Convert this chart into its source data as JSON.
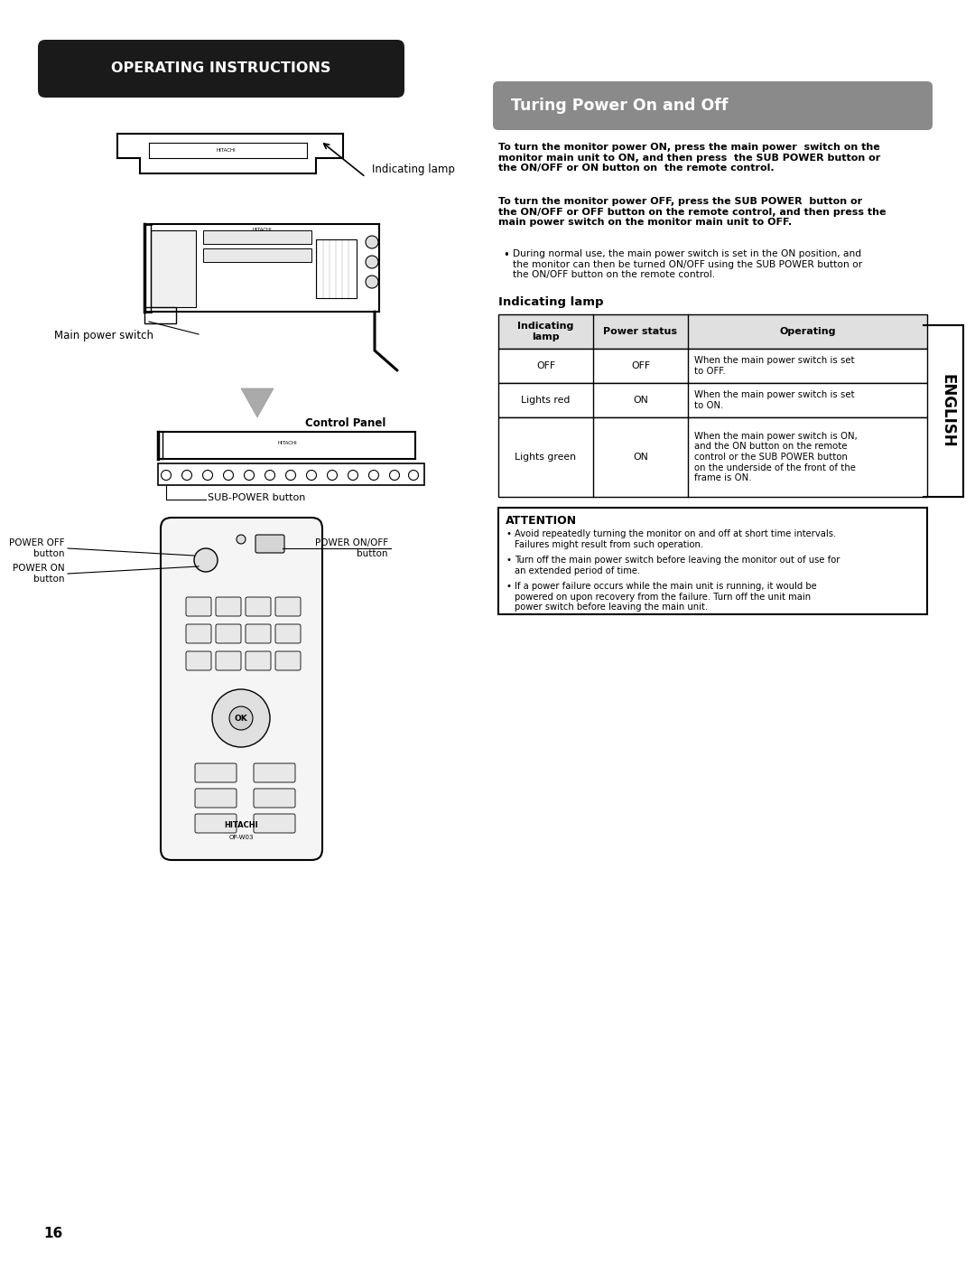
{
  "page_bg": "#ffffff",
  "header_bg": "#1a1a1a",
  "header_text": "OPERATING INSTRUCTIONS",
  "header_text_color": "#ffffff",
  "section_title": "Turing Power On and Off",
  "section_title_bg": "#8a8a8a",
  "section_title_color": "#ffffff",
  "body_bold_text1": "To turn the monitor power ON, press the main power  switch on the\nmonitor main unit to ON, and then press  the SUB POWER button or\nthe ON/OFF or ON button on  the remote control.",
  "body_bold_text2": "To turn the monitor power OFF, press the SUB POWER  button or\nthe ON/OFF or OFF button on the remote control, and then press the\nmain power switch on the monitor main unit to OFF.",
  "body_bullet": "During normal use, the main power switch is set in the ON position, and\nthe monitor can then be turned ON/OFF using the SUB POWER button or\nthe ON/OFF button on the remote control.",
  "indicating_lamp_title": "Indicating lamp",
  "table_headers": [
    "Indicating\nlamp",
    "Power status",
    "Operating"
  ],
  "table_rows": [
    [
      "OFF",
      "OFF",
      "When the main power switch is set\nto OFF."
    ],
    [
      "Lights red",
      "ON",
      "When the main power switch is set\nto ON."
    ],
    [
      "Lights green",
      "ON",
      "When the main power switch is ON,\nand the ON button on the remote\ncontrol or the SUB POWER button\non the underside of the front of the\nframe is ON."
    ]
  ],
  "attention_title": "ATTENTION",
  "attention_bullets": [
    "Avoid repeatedly turning the monitor on and off at short time intervals.\nFailures might result from such operation.",
    "Turn off the main power switch before leaving the monitor out of use for\nan extended period of time.",
    "If a power failure occurs while the main unit is running, it would be\npowered on upon recovery from the failure. Turn off the unit main\npower switch before leaving the main unit."
  ],
  "english_label": "ENGLISH",
  "page_number": "16",
  "label_indicating_lamp": "Indicating lamp",
  "label_main_power_switch": "Main power switch",
  "label_control_panel": "Control Panel",
  "label_sub_power": "SUB-POWER button",
  "label_power_off": "POWER OFF\nbutton",
  "label_power_on": "POWER ON\nbutton",
  "label_power_onoff": "POWER ON/OFF\nbutton"
}
